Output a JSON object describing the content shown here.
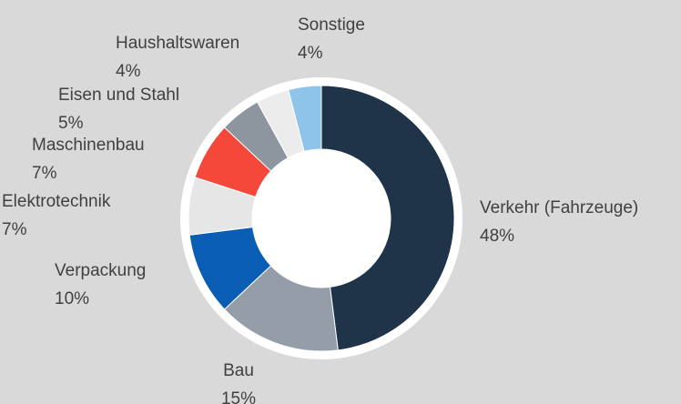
{
  "chart_data": {
    "type": "donut",
    "categories": [
      "Verkehr (Fahrzeuge)",
      "Bau",
      "Verpackung",
      "Elektrotechnik",
      "Maschinenbau",
      "Eisen und Stahl",
      "Haushaltswaren",
      "Sonstige"
    ],
    "values": [
      48,
      15,
      10,
      7,
      7,
      5,
      4,
      4
    ],
    "value_labels": [
      "48%",
      "15%",
      "10%",
      "7%",
      "7%",
      "5%",
      "4%",
      "4%"
    ],
    "colors": [
      "#1f3349",
      "#959ea8",
      "#0a5db5",
      "#e6e6e6",
      "#f4493a",
      "#8d969f",
      "#ececec",
      "#8ec3ea"
    ]
  }
}
